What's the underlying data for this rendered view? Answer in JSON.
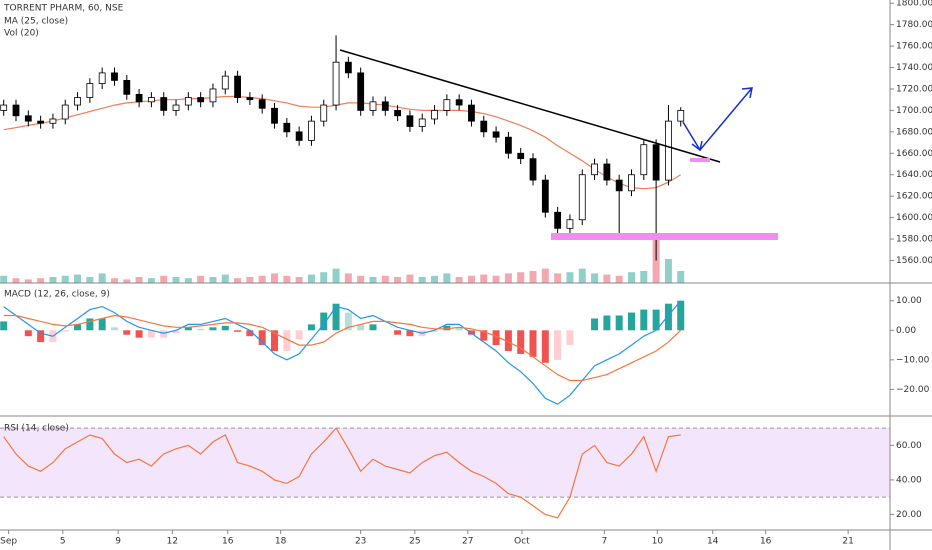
{
  "chart_data": [
    {
      "type": "candlestick",
      "title": "TORRENT PHARM, 60, NSE",
      "xlim": [
        -0.3,
        72
      ],
      "ylim": [
        1539,
        1803
      ],
      "yticks": [
        {
          "value": 1560,
          "label": "1560.00"
        },
        {
          "value": 1580,
          "label": "1580.00"
        },
        {
          "value": 1600,
          "label": "1600.00"
        },
        {
          "value": 1620,
          "label": "1620.00"
        },
        {
          "value": 1640,
          "label": "1640.00"
        },
        {
          "value": 1660,
          "label": "1660.00"
        },
        {
          "value": 1680,
          "label": "1680.00"
        },
        {
          "value": 1700,
          "label": "1700.00"
        },
        {
          "value": 1720,
          "label": "1720.00"
        },
        {
          "value": 1740,
          "label": "1740.00"
        },
        {
          "value": 1760,
          "label": "1760.00"
        },
        {
          "value": 1780,
          "label": "1780.00"
        },
        {
          "value": 1800,
          "label": "1800.00"
        }
      ],
      "up_color": "#ffffff",
      "down_color": "#000000",
      "series": {
        "open": [
          1700,
          1705,
          1695,
          1690,
          1688,
          1692,
          1705,
          1712,
          1725,
          1735,
          1728,
          1715,
          1708,
          1712,
          1700,
          1705,
          1712,
          1708,
          1720,
          1732,
          1712,
          1710,
          1702,
          1688,
          1680,
          1672,
          1690,
          1705,
          1745,
          1735,
          1700,
          1708,
          1700,
          1695,
          1685,
          1692,
          1700,
          1710,
          1705,
          1690,
          1680,
          1675,
          1660,
          1655,
          1635,
          1605,
          1590,
          1598,
          1640,
          1650,
          1635,
          1625,
          1640,
          1668,
          1635,
          1690
        ],
        "high": [
          1710,
          1710,
          1700,
          1695,
          1697,
          1710,
          1717,
          1730,
          1740,
          1740,
          1733,
          1720,
          1717,
          1717,
          1710,
          1717,
          1717,
          1725,
          1737,
          1737,
          1717,
          1715,
          1707,
          1693,
          1685,
          1695,
          1710,
          1770,
          1750,
          1740,
          1713,
          1713,
          1705,
          1700,
          1697,
          1705,
          1715,
          1715,
          1710,
          1695,
          1685,
          1680,
          1665,
          1660,
          1640,
          1610,
          1603,
          1645,
          1655,
          1655,
          1640,
          1645,
          1673,
          1673,
          1705,
          1703
        ],
        "low": [
          1695,
          1690,
          1685,
          1683,
          1683,
          1687,
          1700,
          1707,
          1720,
          1723,
          1710,
          1703,
          1703,
          1695,
          1695,
          1700,
          1703,
          1703,
          1715,
          1707,
          1705,
          1697,
          1683,
          1675,
          1667,
          1667,
          1685,
          1700,
          1730,
          1695,
          1695,
          1695,
          1690,
          1680,
          1680,
          1687,
          1695,
          1700,
          1685,
          1675,
          1670,
          1655,
          1650,
          1630,
          1600,
          1582,
          1585,
          1593,
          1635,
          1630,
          1582,
          1620,
          1635,
          1560,
          1630,
          1685
        ],
        "close": [
          1705,
          1695,
          1690,
          1688,
          1692,
          1705,
          1712,
          1725,
          1735,
          1728,
          1715,
          1708,
          1712,
          1700,
          1705,
          1712,
          1708,
          1720,
          1732,
          1712,
          1710,
          1702,
          1688,
          1680,
          1672,
          1690,
          1705,
          1745,
          1735,
          1700,
          1708,
          1700,
          1695,
          1685,
          1692,
          1700,
          1710,
          1705,
          1690,
          1680,
          1675,
          1660,
          1655,
          1635,
          1605,
          1590,
          1598,
          1640,
          1650,
          1635,
          1625,
          1640,
          1668,
          1635,
          1690,
          1700
        ]
      },
      "ma": {
        "name": "MA (25, close)",
        "color": "#f07e5a",
        "values": [
          1682,
          1684,
          1686,
          1688,
          1690,
          1693,
          1696,
          1699,
          1702,
          1705,
          1707,
          1708,
          1709,
          1710,
          1710,
          1711,
          1711,
          1712,
          1713,
          1713,
          1712,
          1711,
          1709,
          1707,
          1704,
          1703,
          1703,
          1705,
          1707,
          1707,
          1706,
          1705,
          1703,
          1701,
          1700,
          1700,
          1700,
          1700,
          1699,
          1697,
          1694,
          1690,
          1686,
          1681,
          1675,
          1667,
          1660,
          1653,
          1645,
          1638,
          1632,
          1628,
          1627,
          1628,
          1633,
          1640
        ]
      },
      "volume": {
        "name": "Vol (20)",
        "ylim": [
          0,
          100
        ],
        "up_color": "#8fd0ca",
        "down_color": "#f3a8b0",
        "values": [
          6,
          4,
          3,
          4,
          5,
          6,
          7,
          5,
          8,
          4,
          3,
          5,
          4,
          6,
          5,
          4,
          6,
          5,
          7,
          4,
          5,
          6,
          8,
          6,
          5,
          7,
          9,
          12,
          8,
          6,
          5,
          6,
          5,
          7,
          5,
          6,
          8,
          5,
          6,
          7,
          6,
          8,
          9,
          10,
          12,
          8,
          9,
          12,
          8,
          7,
          6,
          9,
          10,
          40,
          20,
          10
        ]
      }
    },
    {
      "type": "macd",
      "title": "MACD (12, 26, close, 9)",
      "xlim": [
        -0.3,
        72
      ],
      "ylim": [
        -29,
        16
      ],
      "yticks": [
        {
          "value": 10,
          "label": "10.00"
        },
        {
          "value": 0,
          "label": "0.00"
        },
        {
          "value": -10,
          "label": "−10.00"
        },
        {
          "value": -20,
          "label": "−20.00"
        }
      ],
      "histogram": {
        "colors": [
          "#26a69a",
          "#b2dfdb",
          "#ffcdd2",
          "#ef5350"
        ],
        "values": [
          3,
          0,
          -2,
          -4,
          -4,
          -0.5,
          2,
          4,
          4,
          1,
          -1.5,
          -2.5,
          -2.5,
          -2.5,
          -1,
          1,
          0.5,
          1,
          1.5,
          -0.5,
          -2,
          -5,
          -7,
          -7,
          -3,
          2,
          6,
          9,
          6,
          2,
          2,
          0,
          -1.5,
          -2,
          -2,
          -0.5,
          1.5,
          1,
          -1.5,
          -3.5,
          -5,
          -7,
          -8,
          -9,
          -11,
          -10,
          -5,
          0,
          4,
          5,
          5,
          6,
          7,
          7,
          9,
          10
        ]
      },
      "macd": {
        "color": "#2196f3",
        "values": [
          8,
          5,
          2,
          -1,
          -2,
          1,
          4,
          7,
          8,
          6,
          3,
          1,
          0,
          -1,
          0,
          2,
          2,
          3,
          4,
          2,
          0,
          -4,
          -8,
          -10,
          -8,
          -3,
          2,
          8,
          7,
          4,
          5,
          3,
          1,
          0,
          -1,
          0,
          2,
          2,
          -1,
          -4,
          -7,
          -11,
          -14,
          -18,
          -23,
          -25,
          -22,
          -17,
          -12,
          -10,
          -8,
          -5,
          -2,
          0,
          5,
          10
        ]
      },
      "signal": {
        "color": "#f4773e",
        "values": [
          5,
          5,
          4,
          3,
          2,
          1.5,
          2,
          3,
          4,
          5,
          4.5,
          3.5,
          2.5,
          1.5,
          1,
          1,
          1.5,
          2,
          2.5,
          2.5,
          2,
          1,
          -1,
          -3,
          -5,
          -5,
          -4,
          -1,
          1,
          2,
          3,
          3,
          2.5,
          2,
          1,
          0.5,
          0.5,
          1,
          0.5,
          -0.5,
          -2,
          -4,
          -6,
          -9,
          -12,
          -15,
          -17,
          -17,
          -16,
          -15,
          -13,
          -11,
          -9,
          -7,
          -4,
          0
        ]
      }
    },
    {
      "type": "line",
      "title": "RSI (14, close)",
      "xlim": [
        -0.3,
        72
      ],
      "ylim": [
        11,
        77
      ],
      "color": "#f4773e",
      "band": [
        30,
        70
      ],
      "band_color": "#f3e5fc",
      "yticks": [
        {
          "value": 20,
          "label": "20.00"
        },
        {
          "value": 40,
          "label": "40.00"
        },
        {
          "value": 60,
          "label": "60.00"
        }
      ],
      "values": [
        65,
        55,
        48,
        45,
        50,
        58,
        62,
        66,
        64,
        55,
        50,
        52,
        48,
        55,
        58,
        60,
        55,
        62,
        66,
        50,
        48,
        45,
        40,
        38,
        42,
        55,
        62,
        70,
        58,
        45,
        52,
        48,
        46,
        44,
        50,
        54,
        56,
        50,
        45,
        42,
        38,
        32,
        30,
        25,
        20,
        18,
        30,
        55,
        60,
        50,
        48,
        55,
        65,
        45,
        65,
        66
      ],
      "xticks": [
        {
          "value": 0.4,
          "label": "Sep"
        },
        {
          "value": 4.8,
          "label": "5"
        },
        {
          "value": 9.3,
          "label": "9"
        },
        {
          "value": 13.7,
          "label": "12"
        },
        {
          "value": 18.2,
          "label": "16"
        },
        {
          "value": 22.5,
          "label": "18"
        },
        {
          "value": 29,
          "label": "23"
        },
        {
          "value": 33.4,
          "label": "25"
        },
        {
          "value": 37.7,
          "label": "27"
        },
        {
          "value": 42.1,
          "label": "Oct"
        },
        {
          "value": 48.8,
          "label": "7"
        },
        {
          "value": 53.1,
          "label": "10"
        },
        {
          "value": 57.6,
          "label": "14"
        },
        {
          "value": 61.9,
          "label": "16"
        },
        {
          "value": 68.6,
          "label": "21"
        }
      ]
    }
  ]
}
